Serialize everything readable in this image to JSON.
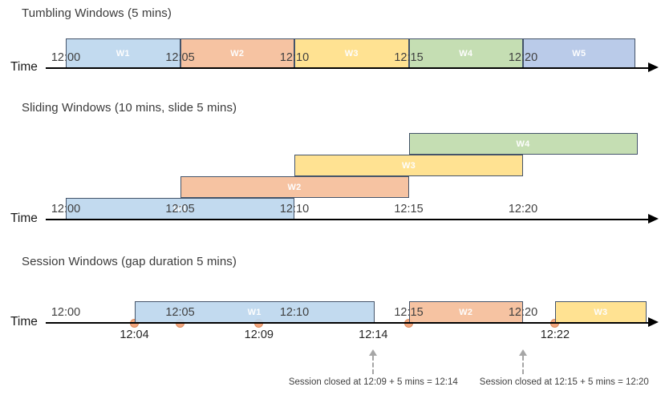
{
  "palette": {
    "blue": "#BDD7EE",
    "orange": "#F5BE9A",
    "yellow": "#FFE089",
    "green": "#C0DBAC",
    "periwinkle": "#B4C7E7",
    "window_border": "#44546A",
    "window_label_text": "#FDFDFD",
    "event_dot": "#F2A57D",
    "event_dot_border": "#DD8B5D",
    "axis": "#000000",
    "tick_text": "#3F3F3F",
    "title_text": "#3A3A3A",
    "annotation_text": "#404040",
    "close_arrow_gray": "#A6A6A6"
  },
  "axis": {
    "ticks": [
      "12:00",
      "12:05",
      "12:10",
      "12:15",
      "12:20"
    ],
    "tick_interval_mins": 5
  },
  "sections": [
    {
      "id": "tumbling",
      "title": "Tumbling Windows (5 mins)",
      "time_label": "Time",
      "windows": [
        {
          "label": "W1",
          "color": "blue",
          "start_min": 0,
          "end_min": 5,
          "row": 0
        },
        {
          "label": "W2",
          "color": "orange",
          "start_min": 5,
          "end_min": 10,
          "row": 0
        },
        {
          "label": "W3",
          "color": "yellow",
          "start_min": 10,
          "end_min": 15,
          "row": 0
        },
        {
          "label": "W4",
          "color": "green",
          "start_min": 15,
          "end_min": 20,
          "row": 0
        },
        {
          "label": "W5",
          "color": "periwinkle",
          "start_min": 20,
          "end_min": 24.9,
          "row": 0
        }
      ]
    },
    {
      "id": "sliding",
      "title": "Sliding Windows (10 mins, slide 5 mins)",
      "time_label": "Time",
      "windows": [
        {
          "label": "W1",
          "color": "blue",
          "start_min": 0,
          "end_min": 10,
          "row": 0
        },
        {
          "label": "W2",
          "color": "orange",
          "start_min": 5,
          "end_min": 15,
          "row": 1
        },
        {
          "label": "W3",
          "color": "yellow",
          "start_min": 10,
          "end_min": 20,
          "row": 2
        },
        {
          "label": "W4",
          "color": "green",
          "start_min": 15,
          "end_min": 25,
          "row": 3
        }
      ]
    },
    {
      "id": "session",
      "title": "Session Windows (gap duration 5 mins)",
      "time_label": "Time",
      "windows": [
        {
          "label": "W1",
          "color": "blue",
          "start_min": 3,
          "end_min": 13.5,
          "row": 0
        },
        {
          "label": "W2",
          "color": "orange",
          "start_min": 15,
          "end_min": 20,
          "row": 0
        },
        {
          "label": "W3",
          "color": "yellow",
          "start_min": 21.4,
          "end_min": 25.4,
          "row": 0
        }
      ],
      "events": [
        {
          "at_min": 3,
          "below_label": "12:04"
        },
        {
          "at_min": 5,
          "below_label": ""
        },
        {
          "at_min": 8.45,
          "below_label": "12:09"
        },
        {
          "at_min": 15,
          "below_label": ""
        },
        {
          "at_min": 21.4,
          "below_label": "12:22"
        }
      ],
      "close_markers": [
        {
          "arrow_at_min": 13.45,
          "extra_label": "12:14",
          "extra_label_at_min": 13.45,
          "annotation": "Session closed at 12:09 + 5 mins = 12:14",
          "annotation_center_min": 13.45
        },
        {
          "arrow_at_min": 20,
          "extra_label": "",
          "extra_label_at_min": null,
          "annotation": "Session closed at 12:15 + 5 mins = 12:20",
          "annotation_center_min": 21.8
        }
      ]
    }
  ]
}
